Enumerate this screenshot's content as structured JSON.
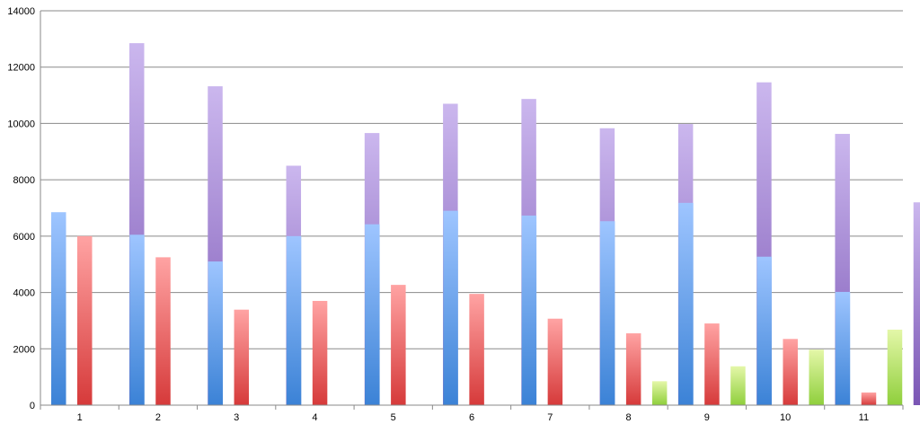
{
  "chart_data": {
    "type": "bar",
    "categories": [
      "1",
      "2",
      "3",
      "4",
      "5",
      "6",
      "7",
      "8",
      "9",
      "10",
      "11"
    ],
    "series": [
      {
        "values": [
          6850,
          6050,
          5100,
          6000,
          6420,
          6900,
          6730,
          6530,
          7180,
          5270,
          4020
        ],
        "color_top": "#9ec5ff",
        "color_bottom": "#3b82d6"
      },
      {
        "values": [
          6000,
          5250,
          3390,
          3700,
          4270,
          3950,
          3070,
          2550,
          2900,
          2350,
          450
        ],
        "color_top": "#ffa3a3",
        "color_bottom": "#d63a3a"
      },
      {
        "values": [
          0,
          0,
          0,
          0,
          0,
          0,
          0,
          850,
          1380,
          1970,
          2680
        ],
        "color_top": "#e4f7a8",
        "color_bottom": "#8fcf3c"
      },
      {
        "values": [
          12850,
          11320,
          8500,
          9660,
          10700,
          10870,
          9830,
          9980,
          11460,
          9630,
          7200
        ],
        "color_top": "#cbb7ee",
        "color_bottom": "#7a55b4"
      }
    ],
    "yticks": [
      0,
      2000,
      4000,
      6000,
      8000,
      10000,
      12000,
      14000
    ],
    "ylim": [
      0,
      14000
    ],
    "grid": true,
    "legend": "none"
  }
}
